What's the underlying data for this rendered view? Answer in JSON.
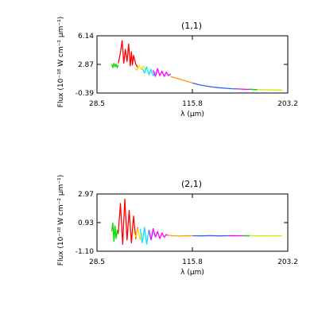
{
  "chart_data": [
    {
      "type": "line",
      "title": "(1,1)",
      "xlabel": "λ (μm)",
      "ylabel": "Flux (10⁻¹⁸ W cm⁻² μm⁻¹)",
      "xlim": [
        28.5,
        203.2
      ],
      "ylim": [
        -0.39,
        6.14
      ],
      "xticks": [
        "28.5",
        "115.8",
        "203.2"
      ],
      "yticks": [
        "6.14",
        "2.87",
        "-0.39"
      ],
      "grid": false,
      "series": [
        {
          "color": "#00dd00",
          "x": [
            42.0,
            43.0,
            44.0,
            45.0,
            46.0,
            47.0,
            48.0
          ],
          "y": [
            2.9,
            2.5,
            3.0,
            2.6,
            2.9,
            2.5,
            2.8
          ]
        },
        {
          "color": "#ff0000",
          "x": [
            48.0,
            50.0,
            51.5,
            53.0,
            54.5,
            56.0,
            57.5,
            59.0,
            60.0,
            61.0,
            62.0,
            64.0,
            66.0
          ],
          "y": [
            3.0,
            4.2,
            5.6,
            3.0,
            4.6,
            3.2,
            5.2,
            2.7,
            4.3,
            2.8,
            3.9,
            2.9,
            2.5
          ]
        },
        {
          "color": "#ffe000",
          "x": [
            63.0,
            65.0,
            67.0,
            69.0,
            71.0,
            73.0
          ],
          "y": [
            2.5,
            2.2,
            2.8,
            2.3,
            2.7,
            2.2
          ]
        },
        {
          "color": "#00e5ff",
          "x": [
            70.0,
            72.0,
            74.0,
            76.0,
            78.0,
            80.0,
            82.0
          ],
          "y": [
            2.4,
            1.9,
            2.6,
            1.7,
            2.3,
            1.6,
            2.0
          ]
        },
        {
          "color": "#ff00ff",
          "x": [
            80.0,
            82.0,
            84.0,
            86.0,
            88.0,
            90.0,
            92.0,
            94.0,
            96.0
          ],
          "y": [
            2.2,
            1.5,
            2.4,
            1.6,
            2.1,
            1.5,
            2.0,
            1.6,
            1.8
          ]
        },
        {
          "color": "#ff9900",
          "x": [
            96.0,
            100.0,
            104.0,
            108.0,
            112.0,
            116.0
          ],
          "y": [
            1.5,
            1.35,
            1.2,
            1.05,
            0.9,
            0.75
          ]
        },
        {
          "color": "#2a62ff",
          "x": [
            116.0,
            122.0,
            128.0,
            134.0,
            140.0,
            146.0,
            152.0,
            158.0
          ],
          "y": [
            0.75,
            0.55,
            0.42,
            0.3,
            0.22,
            0.15,
            0.1,
            0.07
          ]
        },
        {
          "color": "#ff00ff",
          "x": [
            158.0,
            164.0,
            170.0,
            175.0
          ],
          "y": [
            0.07,
            0.04,
            0.02,
            0.0
          ]
        },
        {
          "color": "#00dd00",
          "x": [
            168.0,
            172.0,
            176.0
          ],
          "y": [
            0.05,
            0.01,
            -0.02
          ]
        },
        {
          "color": "#ccee00",
          "x": [
            175.0,
            182.0,
            190.0,
            198.0
          ],
          "y": [
            0.0,
            -0.02,
            -0.04,
            -0.05
          ]
        }
      ]
    },
    {
      "type": "line",
      "title": "(2,1)",
      "xlabel": "λ (μm)",
      "ylabel": "Flux (10⁻¹⁸ W cm⁻² μm⁻¹)",
      "xlim": [
        28.5,
        203.2
      ],
      "ylim": [
        -1.1,
        2.97
      ],
      "xticks": [
        "28.5",
        "115.8",
        "203.2"
      ],
      "yticks": [
        "2.97",
        "0.93",
        "-1.10"
      ],
      "grid": false,
      "series": [
        {
          "color": "#00dd00",
          "x": [
            42.0,
            43.0,
            44.0,
            45.0,
            46.0,
            47.0,
            48.0
          ],
          "y": [
            0.3,
            0.9,
            -0.4,
            0.7,
            -0.2,
            0.4,
            0.1
          ]
        },
        {
          "color": "#ff0000",
          "x": [
            48.0,
            50.0,
            52.0,
            54.0,
            56.0,
            58.0,
            60.0,
            62.0,
            64.0,
            66.0
          ],
          "y": [
            0.2,
            2.3,
            -0.6,
            2.6,
            -0.3,
            1.8,
            -0.5,
            1.4,
            -0.2,
            0.6
          ]
        },
        {
          "color": "#ffe000",
          "x": [
            62.0,
            64.0,
            66.0,
            68.0,
            70.0
          ],
          "y": [
            0.3,
            -0.1,
            0.5,
            -0.3,
            0.2
          ]
        },
        {
          "color": "#00e5ff",
          "x": [
            68.0,
            70.0,
            72.0,
            74.0,
            76.0,
            78.0,
            80.0
          ],
          "y": [
            0.5,
            -0.5,
            0.6,
            -0.6,
            0.4,
            -0.2,
            0.2
          ]
        },
        {
          "color": "#ff00ff",
          "x": [
            76.0,
            78.0,
            80.0,
            82.0,
            84.0,
            86.0,
            88.0,
            90.0,
            92.0,
            94.0
          ],
          "y": [
            0.4,
            -0.3,
            0.5,
            -0.1,
            0.3,
            -0.2,
            0.2,
            -0.1,
            0.1,
            0.0
          ]
        },
        {
          "color": "#ff9900",
          "x": [
            92.0,
            98.0,
            104.0,
            110.0,
            116.0
          ],
          "y": [
            0.05,
            0.0,
            -0.02,
            0.0,
            -0.01
          ]
        },
        {
          "color": "#2a62ff",
          "x": [
            116.0,
            124.0,
            132.0,
            140.0,
            148.0,
            156.0
          ],
          "y": [
            0.0,
            -0.01,
            0.01,
            -0.01,
            0.0,
            0.0
          ]
        },
        {
          "color": "#ff00ff",
          "x": [
            150.0,
            160.0,
            168.0
          ],
          "y": [
            0.0,
            0.0,
            -0.01
          ]
        },
        {
          "color": "#00dd00",
          "x": [
            162.0,
            166.0,
            170.0
          ],
          "y": [
            0.0,
            0.01,
            0.0
          ]
        },
        {
          "color": "#ccee00",
          "x": [
            168.0,
            178.0,
            188.0,
            198.0
          ],
          "y": [
            0.0,
            -0.01,
            0.0,
            0.0
          ]
        }
      ]
    }
  ]
}
